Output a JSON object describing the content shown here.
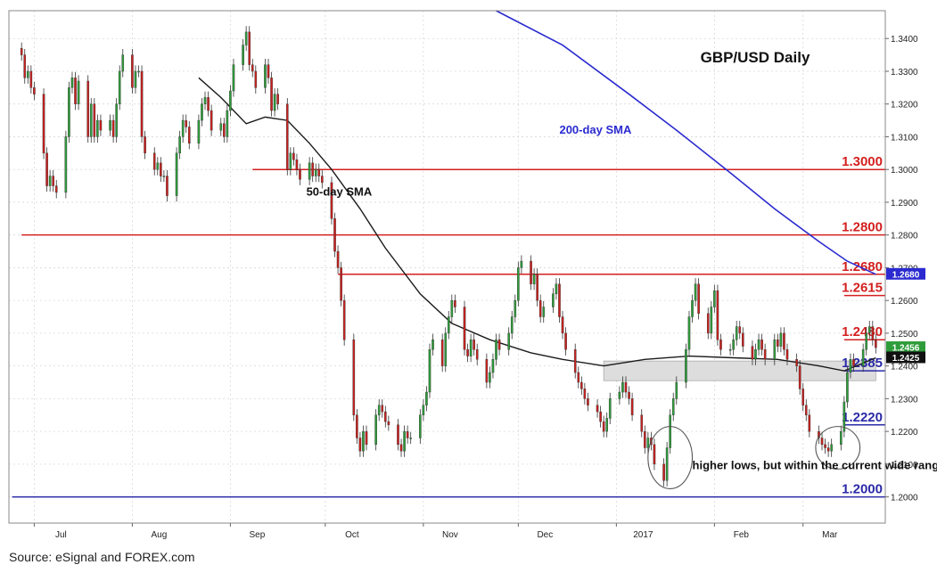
{
  "source_note": "Source: eSignal and FOREX.com",
  "chart_data": {
    "type": "candlestick",
    "title": "GBP/USD Daily",
    "ylim": [
      1.192,
      1.3485
    ],
    "y_ticks": [
      "1.2000",
      "1.2100",
      "1.2200",
      "1.2300",
      "1.2400",
      "1.2500",
      "1.2600",
      "1.2700",
      "1.2800",
      "1.2900",
      "1.3000",
      "1.3100",
      "1.3200",
      "1.3300",
      "1.3400"
    ],
    "x_ticks": [
      "Jul",
      "Aug",
      "Sep",
      "Oct",
      "Nov",
      "Dec",
      "2017",
      "Feb",
      "Mar"
    ],
    "x_tick_dates": [
      "2016-07-01",
      "2016-08-01",
      "2016-09-01",
      "2016-10-01",
      "2016-11-01",
      "2016-12-01",
      "2017-01-01",
      "2017-02-01",
      "2017-03-01"
    ],
    "grid": true,
    "colors": {
      "up": "#2e9c3a",
      "down": "#c8201e",
      "resistance": "#d42020",
      "support": "#2a2aa8",
      "sma50": "#1a1a1a",
      "sma200": "#2a2ad0",
      "zone": "#dddddd"
    },
    "levels": [
      {
        "value": 1.3,
        "label": "1.3000",
        "kind": "resistance",
        "from": "2016-09-08"
      },
      {
        "value": 1.28,
        "label": "1.2800",
        "kind": "resistance",
        "from": "2016-06-27"
      },
      {
        "value": 1.268,
        "label": "1.2680",
        "kind": "resistance",
        "from": "2016-10-05"
      },
      {
        "value": 1.2615,
        "label": "1.2615",
        "kind": "resistance",
        "from": "2017-03-14"
      },
      {
        "value": 1.248,
        "label": "1.2480",
        "kind": "resistance",
        "from": "2017-03-14"
      },
      {
        "value": 1.2385,
        "label": "1.2385",
        "kind": "support",
        "from": "2017-03-14"
      },
      {
        "value": 1.222,
        "label": "1.2220",
        "kind": "support",
        "from": "2017-03-14"
      },
      {
        "value": 1.2,
        "label": "1.2000",
        "kind": "support",
        "from": "2016-06-24"
      }
    ],
    "zone": {
      "from": "2016-12-28",
      "to": "2017-03-24",
      "low": 1.2355,
      "high": 1.2415
    },
    "price_badges": [
      {
        "value": 1.268,
        "label": "1.2680",
        "bg": "#2a2ad0",
        "fg": "#ffffff"
      },
      {
        "value": 1.2456,
        "label": "1.2456",
        "bg": "#2e9c3a",
        "fg": "#ffffff"
      },
      {
        "value": 1.2425,
        "label": "1.2425",
        "bg": "#111111",
        "fg": "#ffffff"
      }
    ],
    "annotations": [
      {
        "text": "200-day SMA",
        "color": "#2a2ad0",
        "date": "2016-12-14",
        "value": 1.311
      },
      {
        "text": "50-day SMA",
        "color": "#111111",
        "date": "2016-09-25",
        "value": 1.292
      },
      {
        "text": "higher lows, but within the current wide range",
        "color": "#111111",
        "date": "2017-01-25",
        "value": 1.2085
      }
    ],
    "ellipses": [
      {
        "date": "2017-01-18",
        "value": 1.212,
        "rx_days": 5,
        "ry_value": 0.0095
      },
      {
        "date": "2017-03-12",
        "value": 1.215,
        "rx_days": 5,
        "ry_value": 0.0065
      }
    ],
    "sma50": [
      [
        "2016-08-22",
        1.328
      ],
      [
        "2016-08-29",
        1.322
      ],
      [
        "2016-09-06",
        1.314
      ],
      [
        "2016-09-12",
        1.316
      ],
      [
        "2016-09-19",
        1.315
      ],
      [
        "2016-09-26",
        1.308
      ],
      [
        "2016-10-03",
        1.3
      ],
      [
        "2016-10-12",
        1.288
      ],
      [
        "2016-10-20",
        1.276
      ],
      [
        "2016-10-31",
        1.262
      ],
      [
        "2016-11-10",
        1.253
      ],
      [
        "2016-11-22",
        1.248
      ],
      [
        "2016-12-05",
        1.244
      ],
      [
        "2016-12-15",
        1.242
      ],
      [
        "2016-12-28",
        1.24
      ],
      [
        "2017-01-10",
        1.242
      ],
      [
        "2017-01-24",
        1.243
      ],
      [
        "2017-02-07",
        1.2425
      ],
      [
        "2017-02-21",
        1.242
      ],
      [
        "2017-03-06",
        1.24
      ],
      [
        "2017-03-14",
        1.2385
      ],
      [
        "2017-03-24",
        1.2425
      ]
    ],
    "sma200": [
      [
        "2016-11-24",
        1.3485
      ],
      [
        "2016-12-15",
        1.338
      ],
      [
        "2017-01-05",
        1.323
      ],
      [
        "2017-01-20",
        1.312
      ],
      [
        "2017-02-06",
        1.299
      ],
      [
        "2017-02-20",
        1.288
      ],
      [
        "2017-03-06",
        1.278
      ],
      [
        "2017-03-15",
        1.272
      ],
      [
        "2017-03-24",
        1.268
      ]
    ],
    "candles_by_week": [
      {
        "week": "2016-06-27",
        "closes": [
          1.335,
          1.328,
          1.33,
          1.325,
          1.323
        ]
      },
      {
        "week": "2016-07-04",
        "closes": [
          1.305,
          1.295,
          1.298,
          1.295,
          1.293
        ]
      },
      {
        "week": "2016-07-11",
        "closes": [
          1.31,
          1.325,
          1.328,
          1.32,
          1.327
        ]
      },
      {
        "week": "2016-07-18",
        "closes": [
          1.31,
          1.32,
          1.31,
          1.315,
          1.312
        ]
      },
      {
        "week": "2016-07-25",
        "closes": [
          1.315,
          1.31,
          1.32,
          1.33,
          1.335
        ]
      },
      {
        "week": "2016-08-01",
        "closes": [
          1.325,
          1.33,
          1.33,
          1.31,
          1.305
        ]
      },
      {
        "week": "2016-08-08",
        "closes": [
          1.3,
          1.302,
          1.298,
          1.298,
          1.292
        ]
      },
      {
        "week": "2016-08-15",
        "closes": [
          1.305,
          1.31,
          1.315,
          1.313,
          1.308
        ]
      },
      {
        "week": "2016-08-22",
        "closes": [
          1.315,
          1.32,
          1.322,
          1.318,
          1.312
        ]
      },
      {
        "week": "2016-08-29",
        "closes": [
          1.314,
          1.31,
          1.318,
          1.324,
          1.332
        ]
      },
      {
        "week": "2016-09-05",
        "closes": [
          1.338,
          1.342,
          1.332,
          1.33,
          1.325
        ]
      },
      {
        "week": "2016-09-12",
        "closes": [
          1.332,
          1.328,
          1.318,
          1.323,
          1.32
        ]
      },
      {
        "week": "2016-09-19",
        "closes": [
          1.3,
          1.305,
          1.303,
          1.3,
          1.297
        ]
      },
      {
        "week": "2016-09-26",
        "closes": [
          1.302,
          1.298,
          1.3,
          1.298,
          1.296
        ]
      },
      {
        "week": "2016-10-03",
        "closes": [
          1.285,
          1.275,
          1.27,
          1.26,
          1.248
        ]
      },
      {
        "week": "2016-10-10",
        "closes": [
          1.225,
          1.218,
          1.214,
          1.22,
          1.216
        ]
      },
      {
        "week": "2016-10-17",
        "closes": [
          1.225,
          1.228,
          1.226,
          1.223,
          1.222
        ]
      },
      {
        "week": "2016-10-24",
        "closes": [
          1.216,
          1.214,
          1.22,
          1.218,
          1.218
        ]
      },
      {
        "week": "2016-10-31",
        "closes": [
          1.225,
          1.228,
          1.232,
          1.245,
          1.248
        ]
      },
      {
        "week": "2016-11-07",
        "closes": [
          1.24,
          1.25,
          1.255,
          1.26,
          1.258
        ]
      },
      {
        "week": "2016-11-14",
        "closes": [
          1.245,
          1.243,
          1.248,
          1.245,
          1.242
        ]
      },
      {
        "week": "2016-11-21",
        "closes": [
          1.235,
          1.238,
          1.242,
          1.248,
          1.245
        ]
      },
      {
        "week": "2016-11-28",
        "closes": [
          1.25,
          1.255,
          1.26,
          1.27,
          1.272
        ]
      },
      {
        "week": "2016-12-05",
        "closes": [
          1.265,
          1.268,
          1.26,
          1.255,
          1.258
        ]
      },
      {
        "week": "2016-12-12",
        "closes": [
          1.262,
          1.265,
          1.255,
          1.25,
          1.245
        ]
      },
      {
        "week": "2016-12-19",
        "closes": [
          1.238,
          1.235,
          1.233,
          1.23,
          1.228
        ]
      },
      {
        "week": "2016-12-26",
        "closes": [
          1.226,
          1.223,
          1.22,
          1.224,
          1.23
        ]
      },
      {
        "week": "2017-01-02",
        "closes": [
          1.232,
          1.235,
          1.232,
          1.23,
          1.225
        ]
      },
      {
        "week": "2017-01-09",
        "closes": [
          1.22,
          1.215,
          1.218,
          1.216,
          1.21
        ]
      },
      {
        "week": "2017-01-16",
        "closes": [
          1.205,
          1.215,
          1.225,
          1.23,
          1.235
        ]
      },
      {
        "week": "2017-01-23",
        "closes": [
          1.245,
          1.255,
          1.26,
          1.265,
          1.256
        ]
      },
      {
        "week": "2017-01-30",
        "closes": [
          1.25,
          1.258,
          1.263,
          1.248,
          1.245
        ]
      },
      {
        "week": "2017-02-06",
        "closes": [
          1.245,
          1.248,
          1.252,
          1.25,
          1.246
        ]
      },
      {
        "week": "2017-02-13",
        "closes": [
          1.242,
          1.245,
          1.248,
          1.245,
          1.242
        ]
      },
      {
        "week": "2017-02-20",
        "closes": [
          1.248,
          1.246,
          1.25,
          1.245,
          1.242
        ]
      },
      {
        "week": "2017-02-27",
        "closes": [
          1.24,
          1.233,
          1.228,
          1.225,
          1.22
        ]
      },
      {
        "week": "2017-03-06",
        "closes": [
          1.218,
          1.216,
          1.215,
          1.214,
          1.216
        ]
      },
      {
        "week": "2017-03-13",
        "closes": [
          1.22,
          1.229,
          1.238,
          1.242,
          1.24
        ]
      },
      {
        "week": "2017-03-20",
        "closes": [
          1.245,
          1.25,
          1.252,
          1.248,
          1.2456
        ]
      }
    ]
  }
}
